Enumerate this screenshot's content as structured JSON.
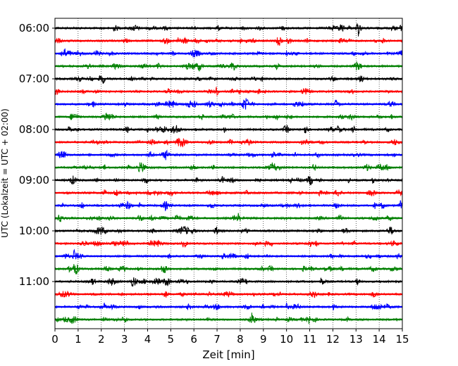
{
  "chart_data": {
    "type": "line",
    "title": "",
    "xlabel": "Zeit  [min]",
    "ylabel": "UTC (Lokalzeit = UTC + 02:00)",
    "xlim": [
      0,
      15
    ],
    "x_ticks": [
      "0",
      "1",
      "2",
      "3",
      "4",
      "5",
      "6",
      "7",
      "8",
      "9",
      "10",
      "11",
      "12",
      "13",
      "14",
      "15"
    ],
    "y_ticks": [
      "06:00",
      "07:00",
      "08:00",
      "09:00",
      "10:00",
      "11:00"
    ],
    "grid": "vertical dotted",
    "trace_interval_min": 15,
    "colors": [
      "#000000",
      "#ff0000",
      "#0000ff",
      "#008000"
    ],
    "traces": [
      {
        "start": "06:00",
        "color": "#000000",
        "events": [
          {
            "t": 8.1,
            "a": 0.4
          },
          {
            "t": 13.1,
            "a": 0.9
          },
          {
            "t": 12.0,
            "a": 0.35
          }
        ]
      },
      {
        "start": "06:15",
        "color": "#ff0000",
        "events": [
          {
            "t": 5.3,
            "a": 0.7
          },
          {
            "t": 7.5,
            "a": 0.3
          }
        ]
      },
      {
        "start": "06:30",
        "color": "#0000ff",
        "events": [
          {
            "t": 0.6,
            "a": 0.5
          },
          {
            "t": 10.0,
            "a": 0.35
          }
        ]
      },
      {
        "start": "06:45",
        "color": "#008000",
        "events": [
          {
            "t": 7.6,
            "a": 0.3
          }
        ]
      },
      {
        "start": "07:00",
        "color": "#000000",
        "events": [
          {
            "t": 2.0,
            "a": 0.3
          }
        ]
      },
      {
        "start": "07:15",
        "color": "#ff0000",
        "events": [
          {
            "t": 4.9,
            "a": 0.35
          },
          {
            "t": 12.6,
            "a": 0.3
          }
        ]
      },
      {
        "start": "07:30",
        "color": "#0000ff",
        "events": [
          {
            "t": 12.1,
            "a": 0.8
          },
          {
            "t": 3.0,
            "a": 0.3
          }
        ]
      },
      {
        "start": "07:45",
        "color": "#008000",
        "events": [
          {
            "t": 10.0,
            "a": 0.3
          }
        ]
      },
      {
        "start": "08:00",
        "color": "#000000",
        "events": [
          {
            "t": 0.6,
            "a": 0.6
          },
          {
            "t": 10.8,
            "a": 0.5
          },
          {
            "t": 12.2,
            "a": 0.5
          }
        ]
      },
      {
        "start": "08:15",
        "color": "#ff0000",
        "events": [
          {
            "t": 3.6,
            "a": 0.4
          },
          {
            "t": 6.6,
            "a": 0.3
          }
        ]
      },
      {
        "start": "08:30",
        "color": "#0000ff",
        "events": [
          {
            "t": 4.8,
            "a": 0.3
          }
        ]
      },
      {
        "start": "08:45",
        "color": "#008000",
        "events": [
          {
            "t": 1.5,
            "a": 0.3
          },
          {
            "t": 9.7,
            "a": 0.3
          }
        ]
      },
      {
        "start": "09:00",
        "color": "#000000",
        "events": [
          {
            "t": 11.0,
            "a": 0.3
          }
        ]
      },
      {
        "start": "09:15",
        "color": "#ff0000",
        "events": [
          {
            "t": 11.4,
            "a": 0.7
          },
          {
            "t": 12.2,
            "a": 0.45
          },
          {
            "t": 7.6,
            "a": 0.35
          }
        ]
      },
      {
        "start": "09:30",
        "color": "#0000ff",
        "events": [
          {
            "t": 14.9,
            "a": 0.7
          },
          {
            "t": 10.0,
            "a": 0.4
          }
        ]
      },
      {
        "start": "09:45",
        "color": "#008000",
        "events": [
          {
            "t": 7.9,
            "a": 0.9
          },
          {
            "t": 4.5,
            "a": 0.35
          }
        ]
      },
      {
        "start": "10:00",
        "color": "#000000",
        "events": [
          {
            "t": 8.0,
            "a": 0.3
          }
        ]
      },
      {
        "start": "10:15",
        "color": "#ff0000",
        "events": [
          {
            "t": 9.1,
            "a": 0.6
          }
        ]
      },
      {
        "start": "10:30",
        "color": "#0000ff",
        "events": [
          {
            "t": 0.8,
            "a": 0.7
          }
        ]
      },
      {
        "start": "10:45",
        "color": "#008000",
        "events": [
          {
            "t": 3.6,
            "a": 0.3
          }
        ]
      },
      {
        "start": "11:00",
        "color": "#000000",
        "events": [
          {
            "t": 11.5,
            "a": 0.9
          }
        ]
      },
      {
        "start": "11:15",
        "color": "#ff0000",
        "events": [
          {
            "t": 6.0,
            "a": 0.25
          }
        ]
      },
      {
        "start": "11:30",
        "color": "#0000ff",
        "events": [
          {
            "t": 10.0,
            "a": 0.5
          },
          {
            "t": 12.0,
            "a": 0.55
          }
        ]
      },
      {
        "start": "11:45",
        "color": "#008000",
        "events": [
          {
            "t": 8.5,
            "a": 1.0
          }
        ]
      }
    ]
  }
}
